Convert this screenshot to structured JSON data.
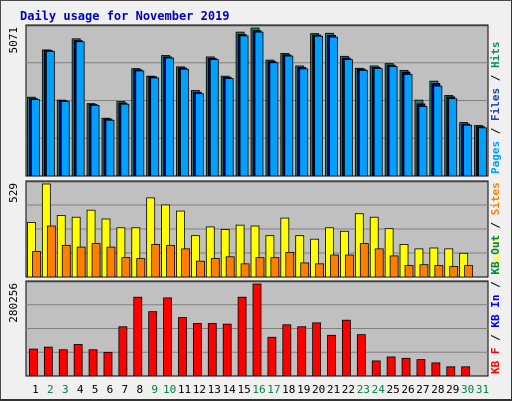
{
  "title": "Daily usage for November 2019",
  "chart_data": [
    {
      "type": "bar",
      "panel": "pages-files-hits",
      "max_label": "5071",
      "ylim": [
        0,
        5071
      ],
      "grid": true,
      "legend": [
        {
          "text": "Pages",
          "color": "#00A0FF"
        },
        {
          "text": "Files",
          "color": "#2040C0"
        },
        {
          "text": "Hits",
          "color": "#109060"
        }
      ],
      "series": [
        {
          "name": "Hits",
          "color": "#1F7F5F",
          "values": [
            2700,
            4320,
            2600,
            4700,
            2480,
            1980,
            2550,
            3680,
            3420,
            4130,
            3740,
            2930,
            4080,
            3420,
            4930,
            5070,
            3970,
            4200,
            3770,
            4880,
            4890,
            4100,
            3690,
            3770,
            3850,
            3620,
            2600,
            3250,
            2760,
            1830,
            1730
          ]
        },
        {
          "name": "Files",
          "color": "#000080",
          "values": [
            2650,
            4300,
            2580,
            4640,
            2450,
            1950,
            2500,
            3640,
            3400,
            4080,
            3700,
            2870,
            4030,
            3380,
            4850,
            4980,
            3920,
            4150,
            3720,
            4830,
            4820,
            4040,
            3660,
            3720,
            3800,
            3560,
            2470,
            3170,
            2710,
            1780,
            1690
          ]
        },
        {
          "name": "Pages",
          "color": "#00A0FF",
          "values": [
            2620,
            4270,
            2550,
            4600,
            2420,
            1910,
            2460,
            3600,
            3360,
            4040,
            3660,
            2820,
            3990,
            3340,
            4800,
            4930,
            3880,
            4110,
            3670,
            4790,
            4760,
            3990,
            3620,
            3680,
            3750,
            3480,
            2380,
            3080,
            2650,
            1740,
            1650
          ]
        }
      ]
    },
    {
      "type": "bar",
      "panel": "visits-sites",
      "max_label": "529",
      "ylim": [
        0,
        529
      ],
      "grid": true,
      "legend": [
        {
          "text": "Visits",
          "color": "#FFFF00"
        },
        {
          "text": "Sites",
          "color": "#FF8000"
        }
      ],
      "series": [
        {
          "name": "Visits",
          "color": "#FFFF00",
          "values": [
            310,
            529,
            350,
            340,
            380,
            330,
            280,
            280,
            450,
            410,
            375,
            235,
            285,
            270,
            295,
            290,
            235,
            335,
            235,
            215,
            280,
            260,
            360,
            340,
            275,
            185,
            160,
            165,
            160,
            135,
            0
          ]
        },
        {
          "name": "Sites",
          "color": "#FF8000",
          "values": [
            145,
            290,
            180,
            170,
            190,
            170,
            110,
            105,
            185,
            180,
            160,
            90,
            105,
            115,
            75,
            110,
            110,
            140,
            80,
            75,
            125,
            125,
            190,
            160,
            120,
            65,
            70,
            65,
            60,
            65,
            0
          ]
        }
      ]
    },
    {
      "type": "bar",
      "panel": "kbin-kbout-kbf",
      "max_label": "280256",
      "ylim": [
        0,
        280256
      ],
      "grid": true,
      "legend": [
        {
          "text": "KB F",
          "color": "#FF0000"
        },
        {
          "text": "KB In",
          "color": "#0000FF"
        },
        {
          "text": "KB Out",
          "color": "#008060"
        }
      ],
      "series": [
        {
          "name": "KB F",
          "color": "#FF0000",
          "values": [
            82000,
            88000,
            80000,
            96000,
            80000,
            72000,
            150000,
            240000,
            196000,
            238000,
            178000,
            160000,
            160000,
            158000,
            240000,
            280256,
            118000,
            156000,
            150000,
            162000,
            124000,
            170000,
            126000,
            46000,
            58000,
            54000,
            50000,
            40000,
            28000,
            28000,
            0
          ]
        }
      ]
    }
  ],
  "x_labels": [
    "1",
    "2",
    "3",
    "4",
    "5",
    "6",
    "7",
    "8",
    "9",
    "10",
    "11",
    "12",
    "13",
    "14",
    "15",
    "16",
    "17",
    "18",
    "19",
    "20",
    "21",
    "22",
    "23",
    "24",
    "25",
    "26",
    "27",
    "28",
    "29",
    "30",
    "31"
  ],
  "weekend_days": [
    2,
    3,
    9,
    10,
    16,
    17,
    23,
    24,
    30,
    31
  ],
  "colors": {
    "weekday_label": "#000000",
    "weekend_label": "#008040",
    "plot_bg": "#C0C0C0",
    "title": "#0000C0"
  }
}
